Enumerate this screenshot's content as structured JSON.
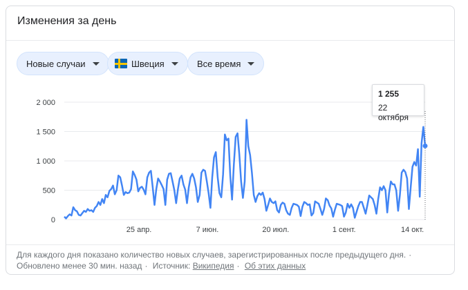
{
  "header": {
    "title": "Изменения за день"
  },
  "filters": {
    "metric": "Новые случаи",
    "country": "Швеция",
    "period": "Все время"
  },
  "colors": {
    "line": "#4285f4",
    "grid": "#e8eaed",
    "chip_bg": "#e8f0fe",
    "flag_blue": "#0a66b5",
    "flag_yellow": "#f7c600"
  },
  "tooltip": {
    "value": "1 255",
    "date": "22 октября"
  },
  "footer": {
    "description": "Для каждого дня показано количество новых случаев, зарегистрированных после предыдущего дня.",
    "updated": "Обновлено менее 30 мин. назад",
    "source_label": "Источник:",
    "source_link": "Википедия",
    "about_link": "Об этих данных"
  },
  "chart_data": {
    "type": "line",
    "title": "",
    "xlabel": "",
    "ylabel": "",
    "ylim": [
      0,
      2000
    ],
    "y_ticks": [
      0,
      500,
      1000,
      1500,
      2000
    ],
    "y_tick_labels": [
      "0",
      "500",
      "1 000",
      "1 500",
      "2 000"
    ],
    "x_ticks": [
      "2020-04-25",
      "2020-06-07",
      "2020-07-20",
      "2020-09-01",
      "2020-10-14"
    ],
    "x_tick_labels": [
      "25 апр.",
      "7 июн.",
      "20 июл.",
      "1 сент.",
      "14 окт."
    ],
    "grid": true,
    "legend": "none",
    "series": [
      {
        "x_start": "2020-03-09",
        "x_end": "2020-10-22",
        "values": [
          50,
          20,
          60,
          90,
          70,
          210,
          160,
          140,
          80,
          70,
          110,
          150,
          130,
          180,
          150,
          160,
          130,
          200,
          230,
          300,
          250,
          350,
          280,
          420,
          380,
          490,
          520,
          580,
          430,
          500,
          750,
          720,
          580,
          420,
          470,
          450,
          460,
          520,
          820,
          760,
          680,
          480,
          540,
          560,
          510,
          430,
          720,
          800,
          830,
          550,
          250,
          520,
          700,
          650,
          590,
          520,
          250,
          680,
          780,
          790,
          650,
          500,
          280,
          520,
          700,
          750,
          600,
          510,
          280,
          550,
          720,
          780,
          700,
          550,
          300,
          420,
          800,
          850,
          830,
          650,
          450,
          200,
          720,
          1060,
          1150,
          720,
          450,
          380,
          770,
          1450,
          1350,
          1380,
          750,
          340,
          940,
          1410,
          1470,
          1110,
          650,
          370,
          650,
          1700,
          1250,
          1100,
          800,
          420,
          300,
          400,
          450,
          420,
          460,
          350,
          150,
          250,
          360,
          300,
          280,
          310,
          160,
          120,
          250,
          290,
          270,
          160,
          100,
          80,
          200,
          270,
          260,
          250,
          220,
          60,
          220,
          300,
          280,
          250,
          260,
          70,
          110,
          310,
          290,
          270,
          180,
          80,
          180,
          360,
          330,
          240,
          190,
          50,
          170,
          270,
          260,
          250,
          230,
          50,
          120,
          270,
          200,
          260,
          200,
          30,
          130,
          230,
          300,
          300,
          200,
          100,
          250,
          410,
          380,
          350,
          250,
          100,
          350,
          550,
          500,
          570,
          500,
          120,
          450,
          650,
          600,
          600,
          500,
          150,
          420,
          800,
          850,
          810,
          700,
          180,
          550,
          900,
          980,
          920,
          1200,
          390,
          1300,
          1580,
          1255
        ]
      }
    ]
  }
}
